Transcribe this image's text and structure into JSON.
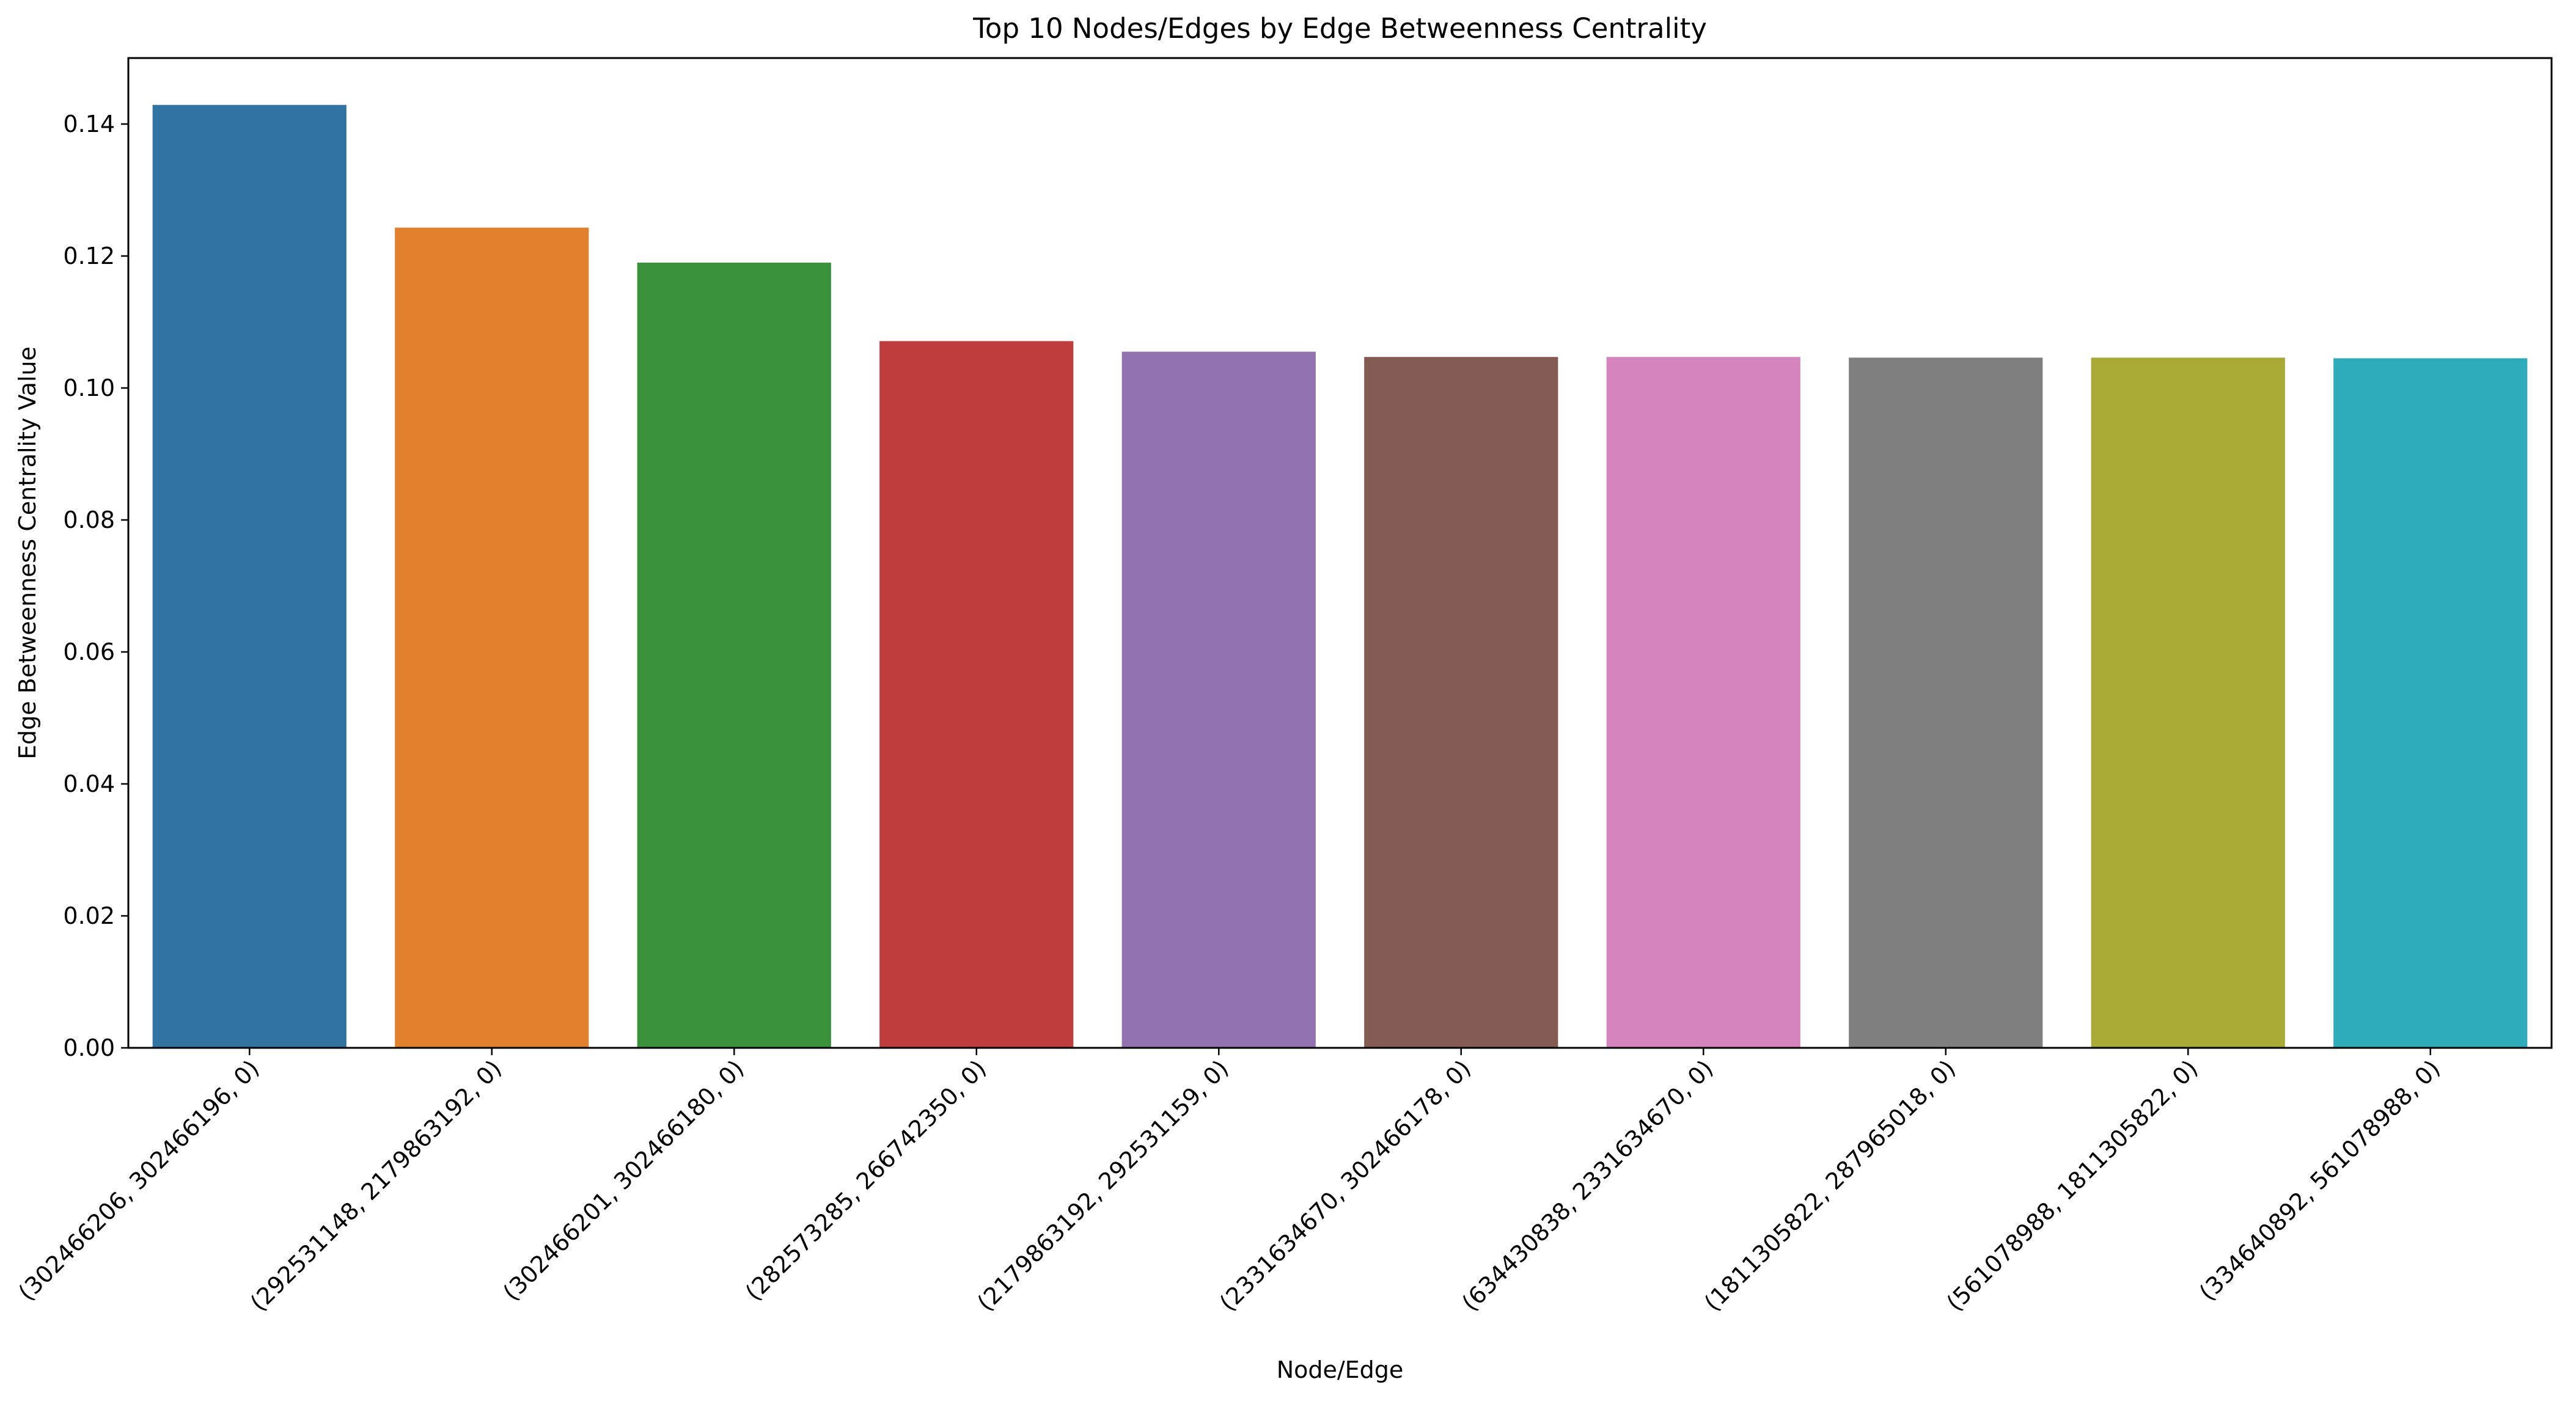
{
  "chart_data": {
    "type": "bar",
    "title": "Top 10 Nodes/Edges by Edge Betweenness Centrality",
    "xlabel": "Node/Edge",
    "ylabel": "Edge Betweenness Centrality Value",
    "categories": [
      "(302466206, 302466196, 0)",
      "(292531148, 2179863192, 0)",
      "(302466201, 302466180, 0)",
      "(282573285, 266742350, 0)",
      "(2179863192, 292531159, 0)",
      "(2331634670, 302466178, 0)",
      "(634430838, 2331634670, 0)",
      "(1811305822, 287965018, 0)",
      "(561078988, 1811305822, 0)",
      "(334640892, 561078988, 0)"
    ],
    "values": [
      0.1429,
      0.1243,
      0.119,
      0.1071,
      0.1055,
      0.1047,
      0.1047,
      0.1046,
      0.1046,
      0.1045
    ],
    "colors": [
      "#3274a1",
      "#e1812c",
      "#3a923a",
      "#c03d3e",
      "#9372b2",
      "#845b53",
      "#d684bd",
      "#7f7f7f",
      "#a9aa35",
      "#2eabb8"
    ],
    "ylim": [
      0,
      0.15
    ],
    "yticks": [
      0.0,
      0.02,
      0.04,
      0.06,
      0.08,
      0.1,
      0.12,
      0.14
    ],
    "ytick_labels": [
      "0.00",
      "0.02",
      "0.04",
      "0.06",
      "0.08",
      "0.10",
      "0.12",
      "0.14"
    ],
    "grid": false,
    "legend": "none"
  }
}
